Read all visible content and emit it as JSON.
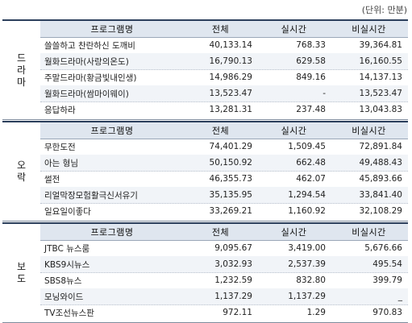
{
  "unit_label": "(단위: 만분)",
  "header": {
    "program": "프로그램명",
    "total": "전체",
    "realtime": "실시간",
    "nonrealtime": "비실시간"
  },
  "sections": [
    {
      "category": [
        "드",
        "라",
        "마"
      ],
      "rows": [
        {
          "name": "쓸쓸하고 찬란하신 도깨비",
          "total": "40,133.14",
          "realtime": "768.33",
          "nonrealtime": "39,364.81"
        },
        {
          "name": "월화드라마(사랑의온도)",
          "total": "16,790.13",
          "realtime": "629.58",
          "nonrealtime": "16,160.55"
        },
        {
          "name": "주말드라마(황금빛내인생)",
          "total": "14,986.29",
          "realtime": "849.16",
          "nonrealtime": "14,137.13"
        },
        {
          "name": "월화드라마(쌈마이웨이)",
          "total": "13,523.47",
          "realtime": "-",
          "nonrealtime": "13,523.47"
        },
        {
          "name": "응답하라",
          "total": "13,281.31",
          "realtime": "237.48",
          "nonrealtime": "13,043.83"
        }
      ]
    },
    {
      "category": [
        "오",
        "락"
      ],
      "rows": [
        {
          "name": "무한도전",
          "total": "74,401.29",
          "realtime": "1,509.45",
          "nonrealtime": "72,891.84"
        },
        {
          "name": "아는 형님",
          "total": "50,150.92",
          "realtime": "662.48",
          "nonrealtime": "49,488.43"
        },
        {
          "name": "썰전",
          "total": "46,355.73",
          "realtime": "462.07",
          "nonrealtime": "45,893.66"
        },
        {
          "name": "리얼막장모험활극신서유기",
          "total": "35,135.95",
          "realtime": "1,294.54",
          "nonrealtime": "33,841.40"
        },
        {
          "name": "일요일이좋다",
          "total": "33,269.21",
          "realtime": "1,160.92",
          "nonrealtime": "32,108.29"
        }
      ]
    },
    {
      "category": [
        "보",
        "도"
      ],
      "rows": [
        {
          "name": "JTBC 뉴스룸",
          "total": "9,095.67",
          "realtime": "3,419.00",
          "nonrealtime": "5,676.66"
        },
        {
          "name": "KBS9시뉴스",
          "total": "3,032.93",
          "realtime": "2,537.39",
          "nonrealtime": "495.54"
        },
        {
          "name": "SBS8뉴스",
          "total": "1,232.59",
          "realtime": "832.80",
          "nonrealtime": "399.79"
        },
        {
          "name": "모닝와이드",
          "total": "1,137.29",
          "realtime": "1,137.29",
          "nonrealtime": "_"
        },
        {
          "name": "TV조선뉴스판",
          "total": "972.11",
          "realtime": "1.29",
          "nonrealtime": "970.83"
        }
      ]
    }
  ]
}
